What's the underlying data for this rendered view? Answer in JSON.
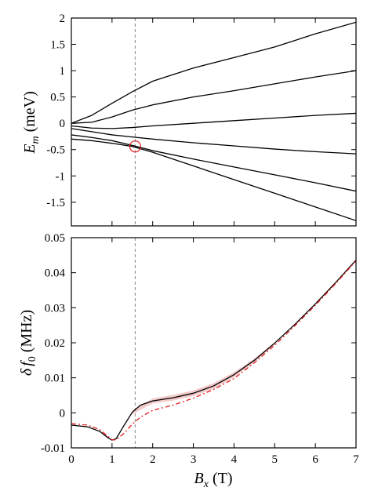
{
  "chart_data": [
    {
      "type": "line",
      "title": "",
      "xlabel": "B_x (T)",
      "ylabel": "E_m (meV)",
      "ylabel_parts": {
        "sym": "E",
        "sub": "m",
        "unit": "(meV)"
      },
      "xlim": [
        0,
        7
      ],
      "ylim": [
        -1.95,
        2.0
      ],
      "yticks": [
        2,
        1.5,
        1,
        0.5,
        0,
        -0.5,
        -1,
        -1.5
      ],
      "ytick_labels": [
        "2",
        "1.5",
        "1",
        "0.5",
        "0",
        "-0.5",
        "-1",
        "-1.5"
      ],
      "xticks": [
        0,
        1,
        2,
        3,
        4,
        5,
        6,
        7
      ],
      "xtick_labels": [
        "",
        "",
        "",
        "",
        "",
        "",
        "",
        ""
      ],
      "grid": false,
      "series_color": "#000000",
      "series": [
        {
          "x": [
            0,
            0.5,
            1,
            1.5,
            2,
            3,
            4,
            5,
            6,
            7
          ],
          "values": [
            0.0,
            0.15,
            0.38,
            0.6,
            0.8,
            1.05,
            1.25,
            1.45,
            1.7,
            1.92
          ]
        },
        {
          "x": [
            0,
            0.5,
            1,
            1.5,
            2,
            3,
            4,
            5,
            6,
            7
          ],
          "values": [
            0.0,
            0.02,
            0.12,
            0.25,
            0.35,
            0.5,
            0.62,
            0.75,
            0.88,
            1.0
          ]
        },
        {
          "x": [
            0,
            0.5,
            1,
            1.5,
            2,
            3,
            4,
            5,
            6,
            7
          ],
          "values": [
            -0.05,
            -0.09,
            -0.1,
            -0.08,
            -0.05,
            0.0,
            0.05,
            0.1,
            0.15,
            0.19
          ]
        },
        {
          "x": [
            0,
            0.5,
            1,
            1.5,
            2,
            3,
            4,
            5,
            6,
            7
          ],
          "values": [
            -0.1,
            -0.16,
            -0.22,
            -0.26,
            -0.3,
            -0.37,
            -0.43,
            -0.49,
            -0.54,
            -0.58
          ]
        },
        {
          "x": [
            0,
            0.5,
            1,
            1.5,
            2,
            3,
            4,
            5,
            6,
            7
          ],
          "values": [
            -0.22,
            -0.27,
            -0.33,
            -0.42,
            -0.52,
            -0.68,
            -0.83,
            -0.98,
            -1.13,
            -1.29
          ]
        },
        {
          "x": [
            0,
            0.5,
            1,
            1.5,
            2,
            3,
            4,
            5,
            6,
            7
          ],
          "values": [
            -0.3,
            -0.33,
            -0.38,
            -0.44,
            -0.55,
            -0.81,
            -1.07,
            -1.33,
            -1.59,
            -1.85
          ]
        }
      ],
      "marker_circle": {
        "x": 1.57,
        "y": -0.44,
        "color": "#e31a1c"
      },
      "vline": {
        "x": 1.57,
        "color": "#999999",
        "style": "dashed"
      }
    },
    {
      "type": "line",
      "title": "",
      "xlabel": "B_x (T)",
      "xlabel_parts": {
        "sym": "B",
        "sub": "x",
        "unit": "(T)"
      },
      "ylabel": "δ f_0 (MHz)",
      "ylabel_parts": {
        "delta": "δ",
        "sym": "f",
        "sub": "0",
        "unit": "(MHz)"
      },
      "xlim": [
        0,
        7
      ],
      "ylim": [
        -0.01,
        0.05
      ],
      "yticks": [
        0.05,
        0.04,
        0.03,
        0.02,
        0.01,
        0,
        -0.01
      ],
      "ytick_labels": [
        "0.05",
        "0.04",
        "0.03",
        "0.02",
        "0.01",
        "0",
        "-0.01"
      ],
      "xticks": [
        0,
        1,
        2,
        3,
        4,
        5,
        6,
        7
      ],
      "xtick_labels": [
        "0",
        "1",
        "2",
        "3",
        "4",
        "5",
        "6",
        "7"
      ],
      "grid": false,
      "series": [
        {
          "style": "solid",
          "color": "#000000",
          "x": [
            0,
            0.4,
            0.7,
            0.9,
            1.0,
            1.1,
            1.3,
            1.5,
            1.7,
            2.0,
            2.5,
            3.0,
            3.5,
            4.0,
            4.5,
            5.0,
            5.5,
            6.0,
            6.5,
            7.0
          ],
          "values": [
            -0.0035,
            -0.004,
            -0.0053,
            -0.0071,
            -0.0078,
            -0.0074,
            -0.0035,
            0.0002,
            0.0022,
            0.0034,
            0.0043,
            0.0056,
            0.0077,
            0.0109,
            0.015,
            0.0199,
            0.0253,
            0.0311,
            0.0372,
            0.0436
          ]
        },
        {
          "style": "dashdot",
          "color": "#e31a1c",
          "x": [
            0,
            0.4,
            0.7,
            0.9,
            1.0,
            1.1,
            1.3,
            1.5,
            1.7,
            2.0,
            2.5,
            3.0,
            3.5,
            4.0,
            4.5,
            5.0,
            5.5,
            6.0,
            6.5,
            7.0
          ],
          "values": [
            -0.0031,
            -0.0035,
            -0.0048,
            -0.0067,
            -0.0077,
            -0.0077,
            -0.0058,
            -0.0032,
            -0.0012,
            0.0007,
            0.0022,
            0.0042,
            0.0067,
            0.0098,
            0.0143,
            0.0193,
            0.0249,
            0.0307,
            0.0369,
            0.0434
          ]
        }
      ],
      "band": {
        "color": "#f2caca",
        "x": [
          1.5,
          2.0,
          2.5,
          3.0,
          3.5,
          4.0,
          4.5,
          5.0
        ],
        "upper": [
          0.0008,
          0.0041,
          0.0051,
          0.0064,
          0.0085,
          0.0116,
          0.0155,
          0.0202
        ],
        "lower": [
          -0.0004,
          0.0027,
          0.0035,
          0.0048,
          0.0069,
          0.0102,
          0.0145,
          0.0196
        ]
      },
      "vline": {
        "x": 1.57,
        "color": "#999999",
        "style": "dashed"
      }
    }
  ]
}
